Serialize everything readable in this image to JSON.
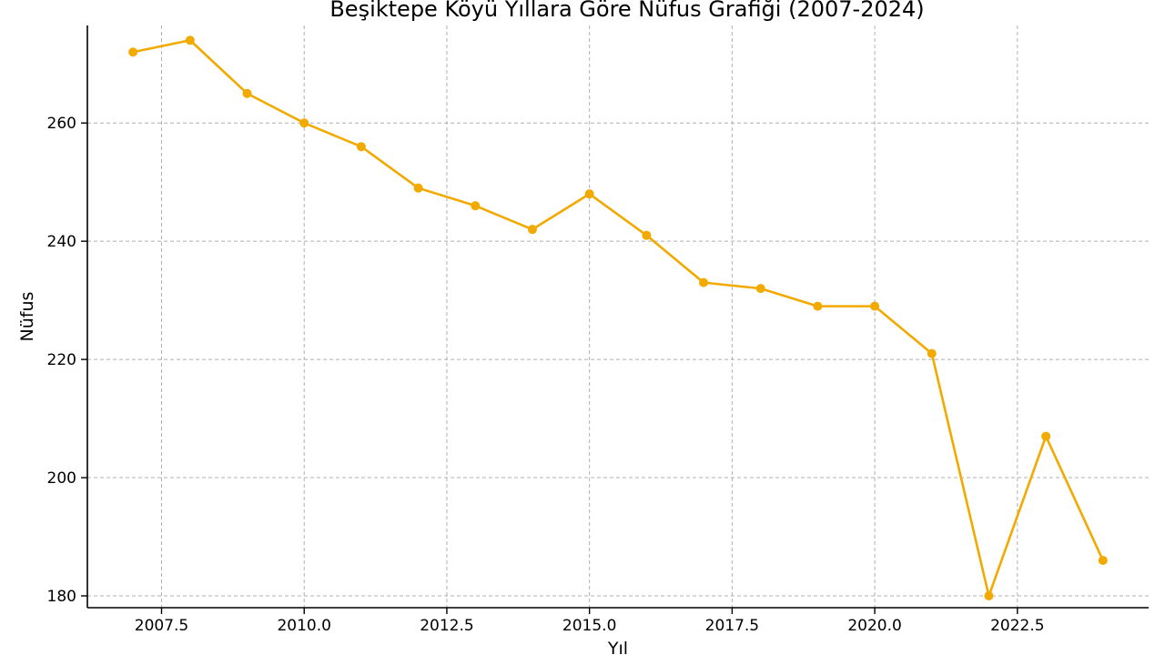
{
  "chart_data": {
    "type": "line",
    "title": "Beşiktepe Köyü Yıllara Göre Nüfus Grafiği (2007-2024)",
    "xlabel": "Yıl",
    "ylabel": "Nüfus",
    "x_ticks": [
      "2007.5",
      "2010.0",
      "2012.5",
      "2015.0",
      "2017.5",
      "2020.0",
      "2022.5"
    ],
    "y_ticks": [
      "180",
      "200",
      "220",
      "240",
      "260"
    ],
    "xlim": [
      2006.2,
      2024.8
    ],
    "ylim": [
      178,
      276.5
    ],
    "grid": true,
    "series": [
      {
        "color": "#F2A900",
        "marker": "circle",
        "x": [
          2007,
          2008,
          2009,
          2010,
          2011,
          2012,
          2013,
          2014,
          2015,
          2016,
          2017,
          2018,
          2019,
          2020,
          2021,
          2022,
          2023,
          2024
        ],
        "values": [
          272,
          274,
          265,
          260,
          256,
          249,
          246,
          242,
          248,
          241,
          233,
          232,
          229,
          229,
          221,
          180,
          207,
          186
        ]
      }
    ]
  }
}
